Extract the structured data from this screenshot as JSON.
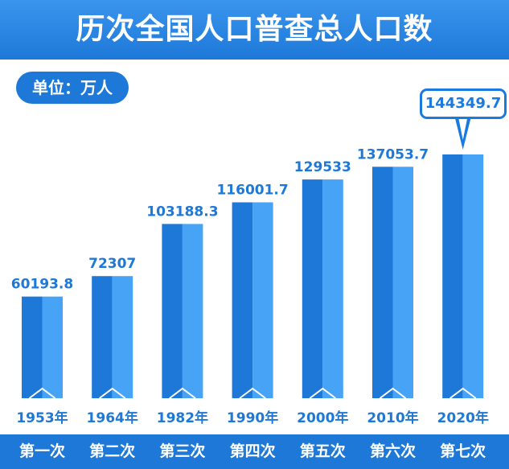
{
  "title": "历次全国人口普查总人口数",
  "unit_label": "单位：万人",
  "highlight_value": "144349.7",
  "colors": {
    "bar_dark": "#1d78d8",
    "bar_light": "#46a3f6",
    "value_text": "#1d78d8",
    "year_text": "#1d78d8",
    "band": "#1d78d8"
  },
  "chart_data": {
    "type": "bar",
    "categories": [
      "1953年",
      "1964年",
      "1982年",
      "1990年",
      "2000年",
      "2010年",
      "2020年"
    ],
    "census_labels": [
      "第一次",
      "第二次",
      "第三次",
      "第四次",
      "第五次",
      "第六次",
      "第七次"
    ],
    "values": [
      60193.8,
      72307,
      103188.3,
      116001.7,
      129533,
      137053.7,
      144349.7
    ],
    "value_labels": [
      "60193.8",
      "72307",
      "103188.3",
      "116001.7",
      "129533",
      "137053.7",
      "144349.7"
    ],
    "show_value_label": [
      true,
      true,
      true,
      true,
      true,
      true,
      false
    ]
  }
}
